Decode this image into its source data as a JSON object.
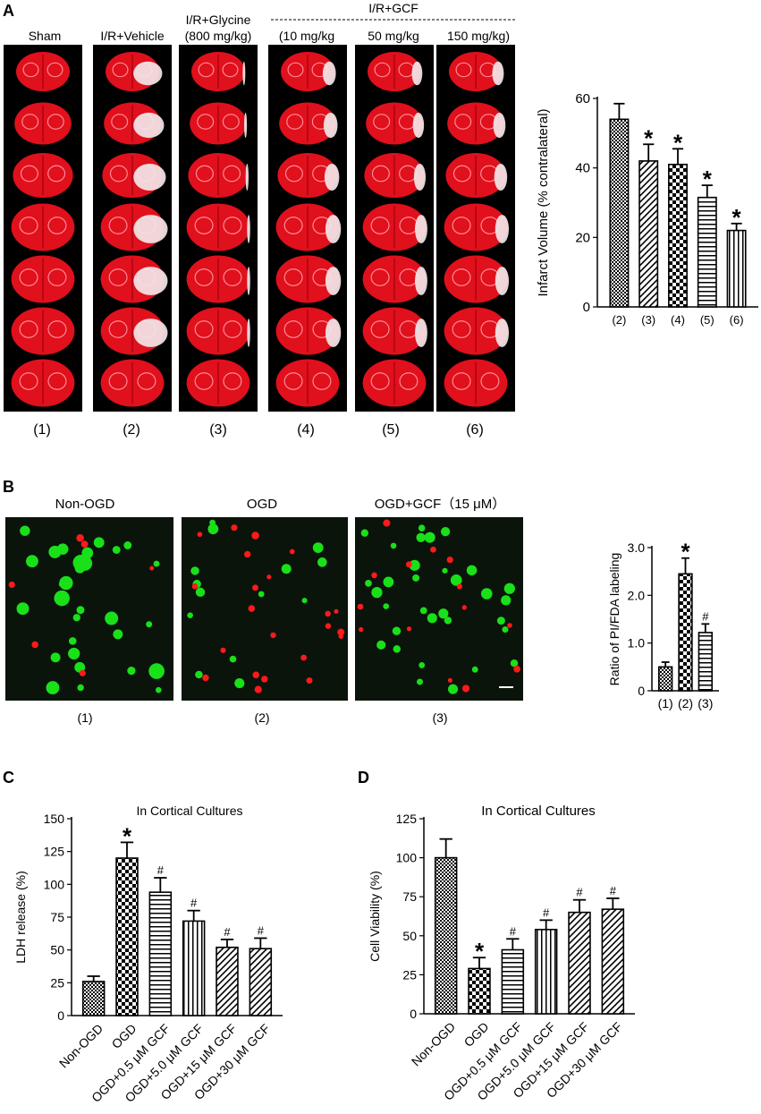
{
  "panels": {
    "A": {
      "label": "A",
      "columns": [
        {
          "header": "Sham",
          "number": "(1)"
        },
        {
          "header": "I/R+Vehicle",
          "number": "(2)"
        },
        {
          "header": "I/R+Glycine\n(800 mg/kg)",
          "number": "(3)"
        },
        {
          "header": "(10 mg/kg",
          "number": "(4)"
        },
        {
          "header": "50 mg/kg",
          "number": "(5)"
        },
        {
          "header": "150 mg/kg)",
          "number": "(6)"
        }
      ],
      "group_header": "I/R+GCF",
      "colors": {
        "brain_red": "#e0101c",
        "lesion": "#f2e6e8",
        "background": "#000000"
      }
    },
    "B": {
      "label": "B",
      "images": [
        {
          "title": "Non-OGD",
          "number": "(1)"
        },
        {
          "title": "OGD",
          "number": "(2)"
        },
        {
          "title": "OGD+GCF（15  μM）",
          "number": "(3)"
        }
      ],
      "colors": {
        "green": "#19e019",
        "red": "#ff1a1a",
        "background": "#0b140b"
      }
    },
    "C": {
      "label": "C"
    },
    "D": {
      "label": "D"
    }
  },
  "chart_data": [
    {
      "id": "A",
      "type": "bar",
      "categories": [
        "(2)",
        "(3)",
        "(4)",
        "(5)",
        "(6)"
      ],
      "values": [
        54,
        42,
        41,
        31.5,
        22
      ],
      "errors": [
        4.5,
        4.8,
        4.5,
        3.5,
        2
      ],
      "annotations": [
        "",
        "*",
        "*",
        "*",
        "*"
      ],
      "patterns": [
        "crosshatch",
        "diagonal",
        "checker",
        "horizontal",
        "vertical"
      ],
      "title": "",
      "xlabel": "",
      "ylabel": "Infarct Volume (% contralateral)",
      "ylim": [
        0,
        60
      ],
      "yticks": [
        0,
        20,
        40,
        60
      ]
    },
    {
      "id": "B",
      "type": "bar",
      "categories": [
        "(1)",
        "(2)",
        "(3)"
      ],
      "values": [
        0.5,
        2.45,
        1.22
      ],
      "errors": [
        0.1,
        0.33,
        0.18
      ],
      "annotations": [
        "",
        "*",
        "#"
      ],
      "patterns": [
        "crosshatch",
        "checker",
        "horizontal"
      ],
      "title": "",
      "xlabel": "",
      "ylabel": "Ratio of PI/FDA labeling",
      "ylim": [
        0,
        3
      ],
      "yticks": [
        0,
        1,
        2,
        3
      ],
      "ytick_labels": [
        "0",
        "1.0",
        "2.0",
        "3.0"
      ]
    },
    {
      "id": "C",
      "type": "bar",
      "categories": [
        "Non-OGD",
        "OGD",
        "OGD+0.5 μM GCF",
        "OGD+5.0 μM GCF",
        "OGD+15 μM GCF",
        "OGD+30 μM GCF"
      ],
      "values": [
        26,
        120,
        94,
        72,
        52,
        51
      ],
      "errors": [
        4,
        12,
        11,
        8,
        6,
        8
      ],
      "annotations": [
        "",
        "*",
        "#",
        "#",
        "#",
        "#"
      ],
      "patterns": [
        "crosshatch",
        "checker",
        "horizontal",
        "vertical",
        "diagonal",
        "diagonal"
      ],
      "title": "In Cortical Cultures",
      "xlabel": "",
      "ylabel": "LDH release (%)",
      "ylim": [
        0,
        150
      ],
      "yticks": [
        0,
        25,
        50,
        75,
        100,
        125,
        150
      ]
    },
    {
      "id": "D",
      "type": "bar",
      "categories": [
        "Non-OGD",
        "OGD",
        "OGD+0.5 μM GCF",
        "OGD+5.0 μM GCF",
        "OGD+15 μM GCF",
        "OGD+30 μM GCF"
      ],
      "values": [
        100,
        29,
        41,
        54,
        65,
        67
      ],
      "errors": [
        12,
        7,
        7,
        6,
        8,
        7
      ],
      "annotations": [
        "",
        "*",
        "#",
        "#",
        "#",
        "#"
      ],
      "patterns": [
        "crosshatch",
        "checker",
        "horizontal",
        "vertical",
        "diagonal",
        "diagonal"
      ],
      "title": "In Cortical Cultures",
      "xlabel": "",
      "ylabel": "Cell Viability (%)",
      "ylim": [
        0,
        125
      ],
      "yticks": [
        0,
        25,
        50,
        75,
        100,
        125
      ]
    }
  ]
}
